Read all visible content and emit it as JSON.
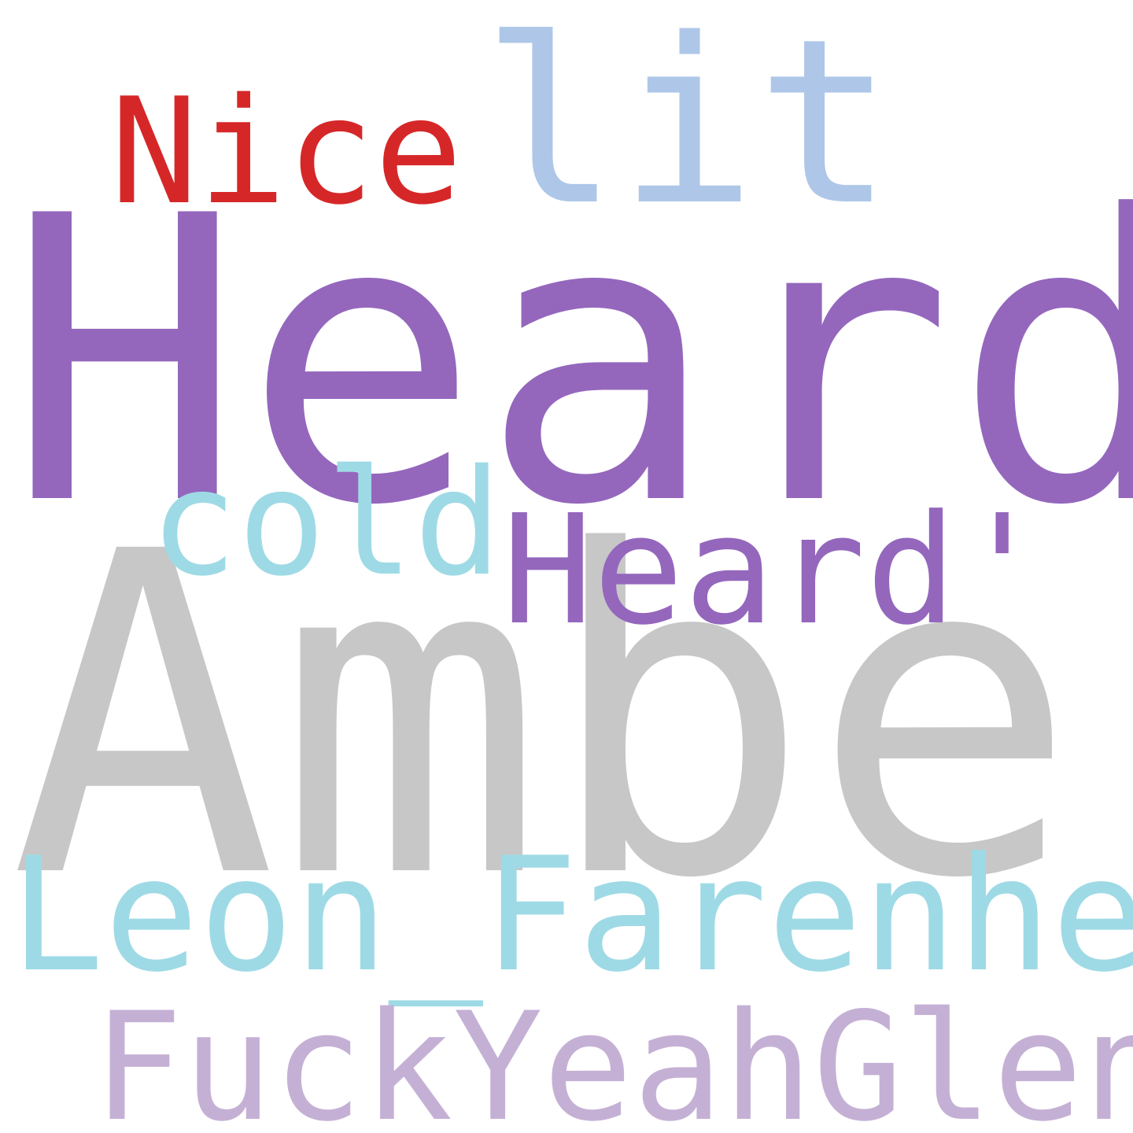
{
  "words": {
    "nice": {
      "text": "Nice",
      "color": "#d62728"
    },
    "lit": {
      "text": "lit",
      "color": "#aec7e8"
    },
    "heard": {
      "text": "Heard",
      "color": "#9467bd"
    },
    "cold": {
      "text": "cold",
      "color": "#9edae5"
    },
    "heardq": {
      "text": "Heard'",
      "color": "#9467bd"
    },
    "amber": {
      "text": "Amber",
      "color": "#c7c7c7"
    },
    "leon": {
      "text": "Leon_Farenheit",
      "color": "#9edae5"
    },
    "fuck": {
      "text": "FuckYeahGlenn",
      "color": "#c5b0d5"
    }
  }
}
